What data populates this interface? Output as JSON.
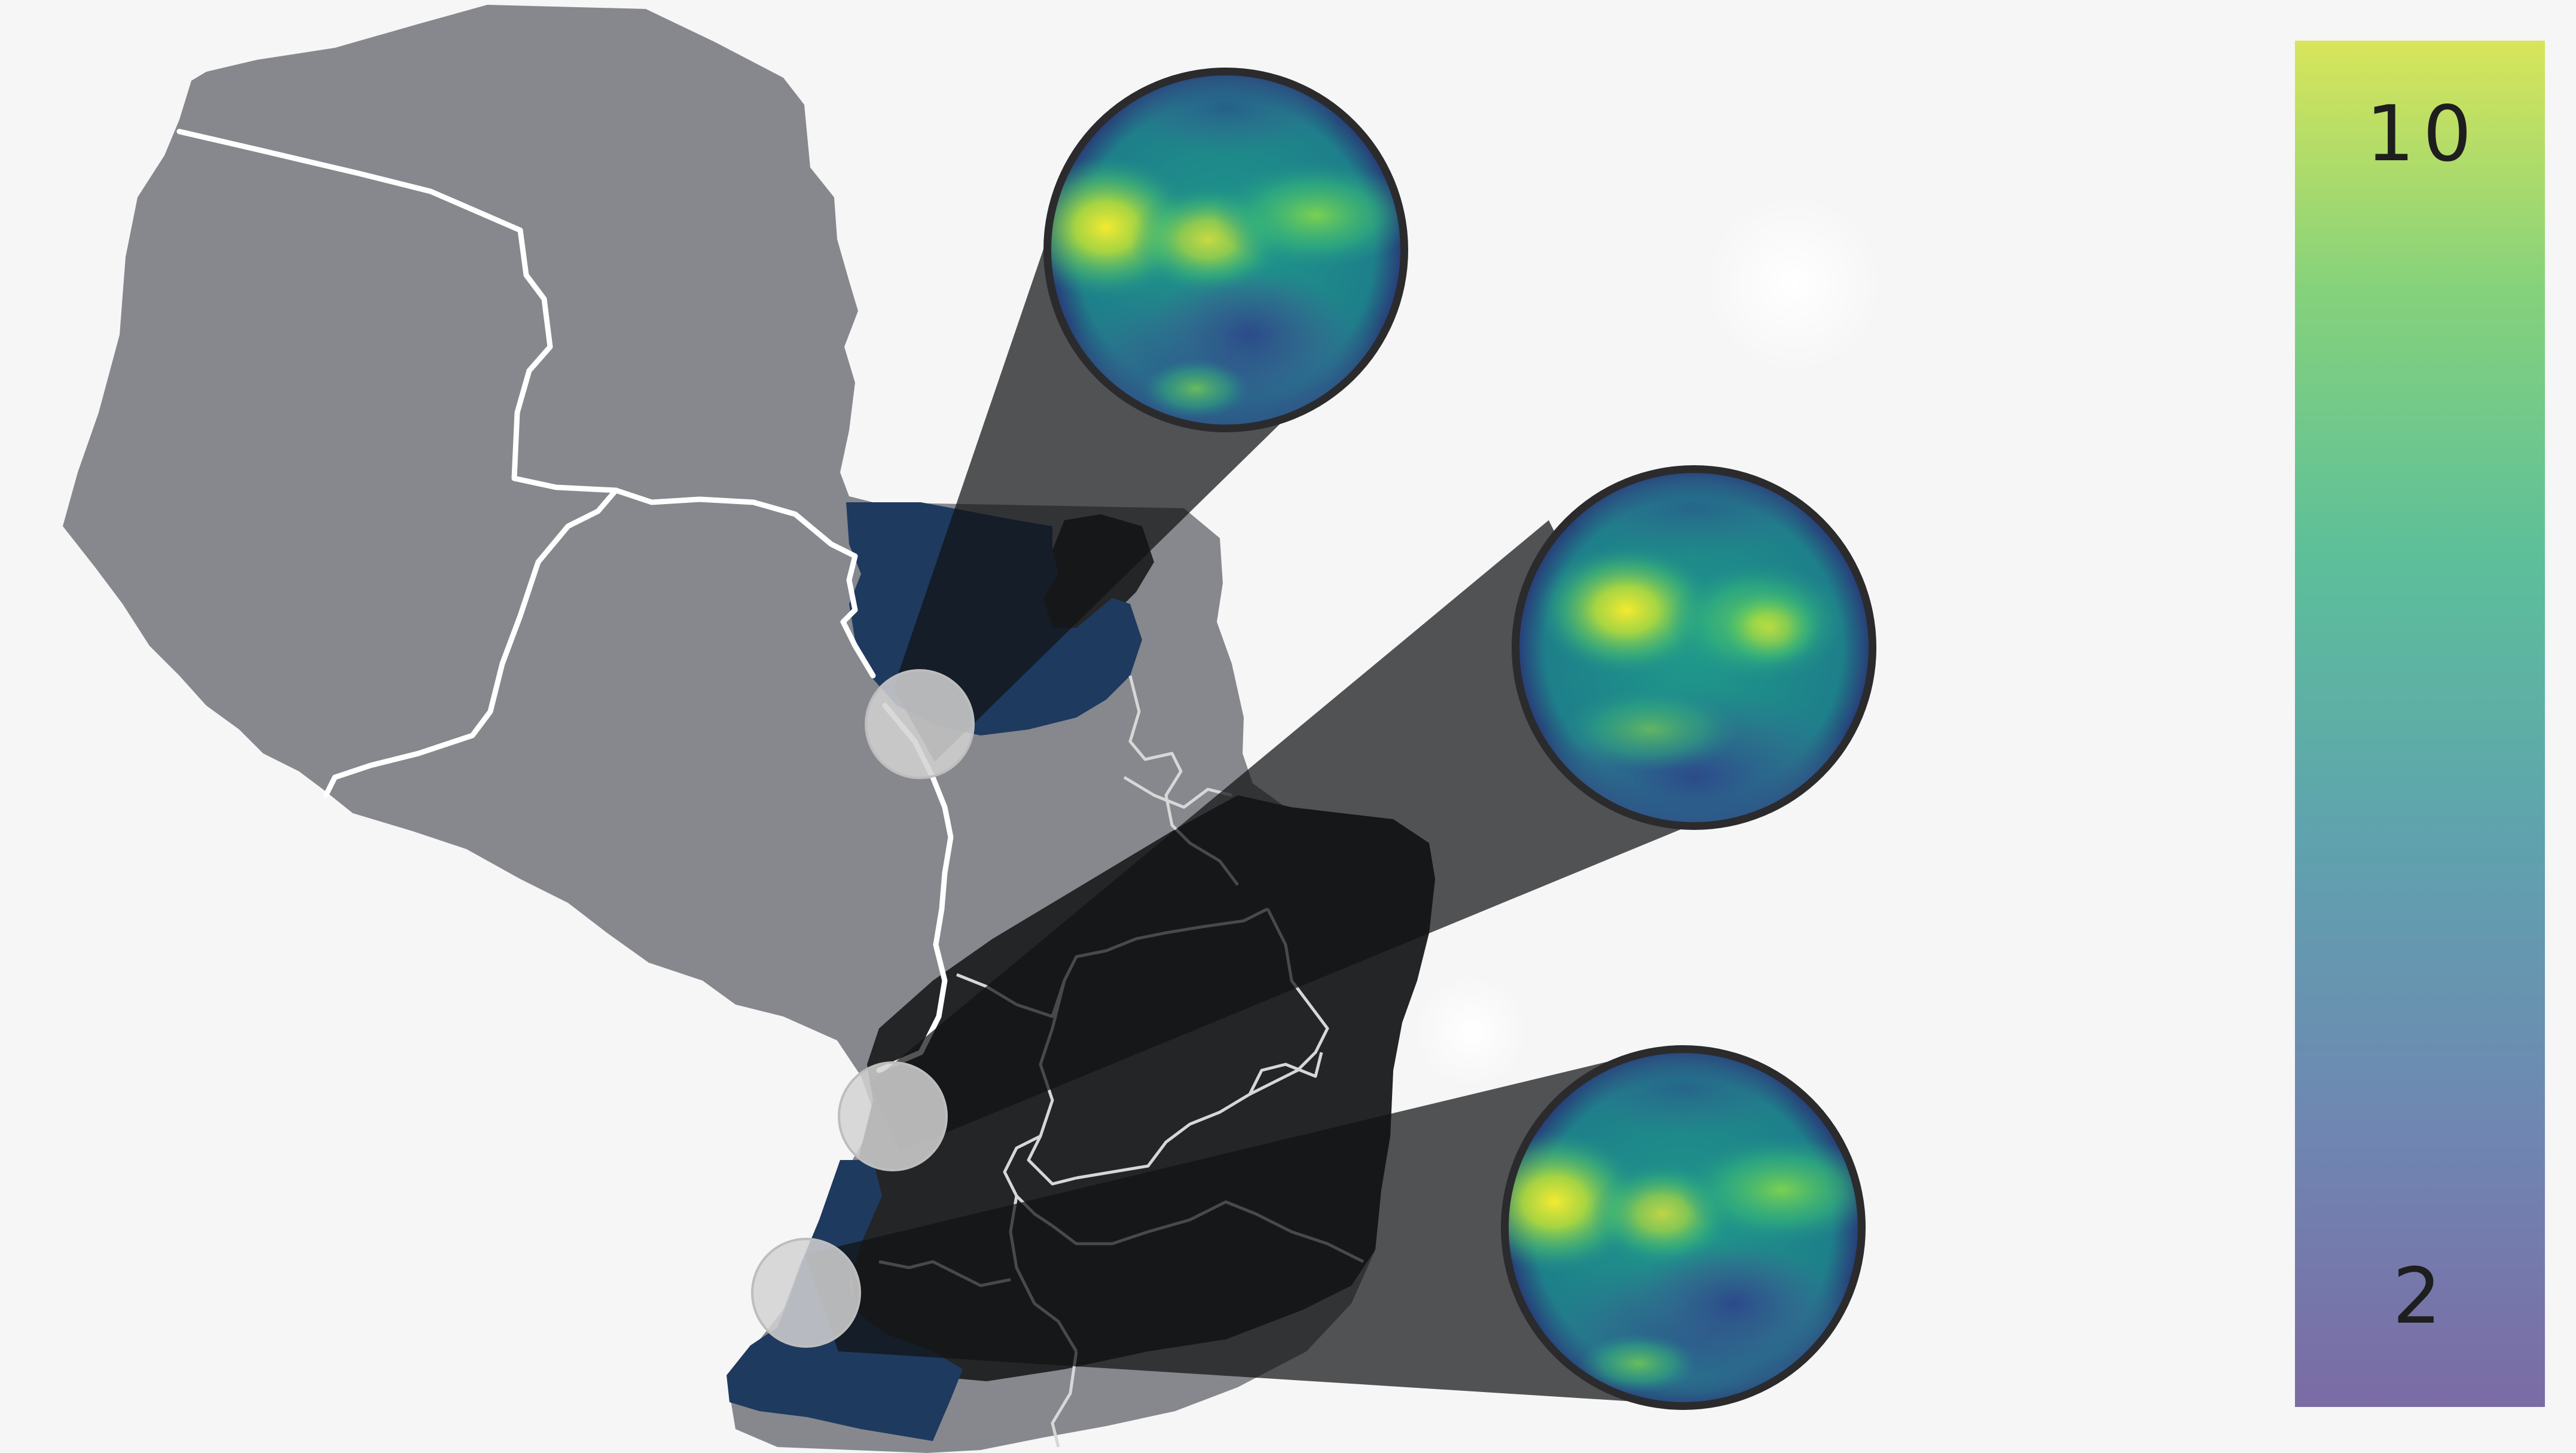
{
  "colorbar": {
    "max_label": "10",
    "min_label": "2",
    "range": [
      2,
      10
    ],
    "colormap": "viridis",
    "colors": [
      "#7b6ba5",
      "#6f86b2",
      "#5fa3ae",
      "#5cbf9a",
      "#86d27b",
      "#d8e55a"
    ]
  },
  "map": {
    "base_color": "#86888d",
    "dark_region_color": "#242527",
    "highlight_color": "#1f3a5f",
    "border_color": "#ffffff"
  },
  "markers": [
    {
      "name": "marker-north",
      "heatmap_peak_color": "#f2e83a"
    },
    {
      "name": "marker-middle",
      "heatmap_peak_color": "#f2e83a"
    },
    {
      "name": "marker-south",
      "heatmap_peak_color": "#f2e83a"
    }
  ]
}
